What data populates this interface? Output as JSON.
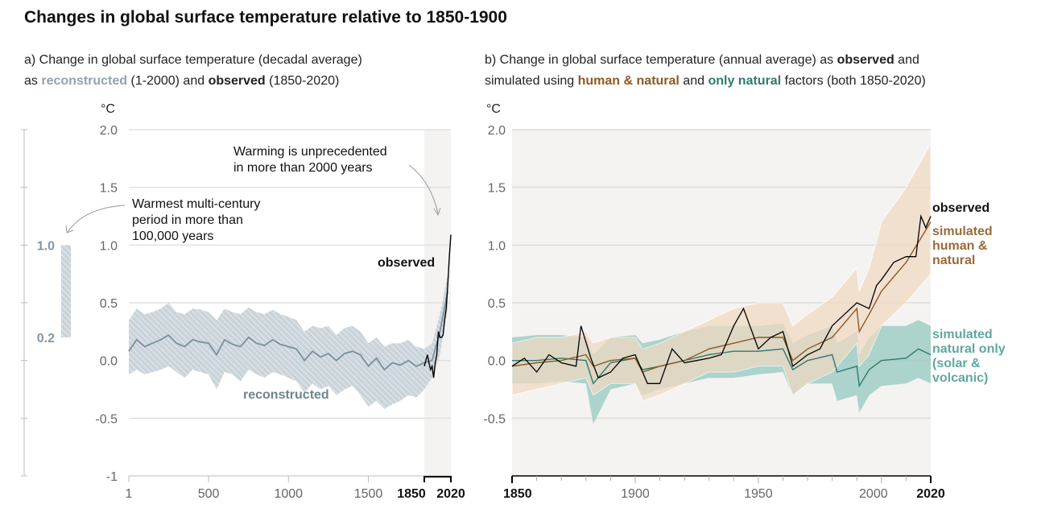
{
  "title": "Changes in global surface temperature relative to 1850-1900",
  "panel_a": {
    "line1": "a) Change in global surface temperature (decadal average)",
    "line2_pre": "as ",
    "line2_recon": "reconstructed",
    "line2_mid": " (1-2000) and ",
    "line2_obs": "observed",
    "line2_post": " (1850-2020)",
    "unit": "°C",
    "annotation_unprecedented": [
      "Warming is unprecedented",
      "in more than 2000 years"
    ],
    "annotation_warmest": [
      "Warmest multi-century",
      "period in more than",
      "100,000 years"
    ],
    "label_observed": "observed",
    "label_reconstructed": "reconstructed",
    "warmest_range": {
      "low": 0.2,
      "high": 1.0,
      "labels": [
        "1.0",
        "0.2"
      ]
    }
  },
  "panel_b": {
    "line1_pre": "b) Change in global surface temperature (annual average) as ",
    "line1_obs": "observed",
    "line1_post": " and",
    "line2_pre": "simulated using ",
    "line2_human": "human & natural",
    "line2_mid": " and ",
    "line2_nat": "only natural",
    "line2_post": " factors (both 1850-2020)",
    "unit": "°C",
    "label_observed": "observed",
    "label_human": [
      "simulated",
      "human &",
      "natural"
    ],
    "label_natural": [
      "simulated",
      "natural only",
      "(solar &",
      "volcanic)"
    ]
  },
  "colors": {
    "reconstructed": "#7a909c",
    "recon_band": "#b7c4cc",
    "observed": "#000000",
    "human": "#8c5a24",
    "human_band": "#f2d9c2",
    "natural": "#2f7a70",
    "natural_band": "#9fcdc6",
    "shade": "#f4f3f1"
  },
  "chart_data": [
    {
      "type": "line",
      "panel": "a",
      "ylim": [
        -1,
        2
      ],
      "yticks": [
        "2.0",
        "1.5",
        "1.0",
        "0.5",
        "0.0",
        "-0.5",
        "-1"
      ],
      "xticks": [
        "1",
        "500",
        "1000",
        "1500",
        "1850",
        "2020"
      ],
      "series": [
        {
          "name": "reconstructed",
          "x": [
            1,
            50,
            100,
            150,
            200,
            250,
            300,
            350,
            400,
            450,
            500,
            550,
            600,
            650,
            700,
            750,
            800,
            850,
            900,
            950,
            1000,
            1050,
            1100,
            1150,
            1200,
            1250,
            1300,
            1350,
            1400,
            1450,
            1500,
            1550,
            1600,
            1650,
            1700,
            1750,
            1800,
            1850,
            1900,
            1950,
            2000
          ],
          "y": [
            0.08,
            0.18,
            0.12,
            0.15,
            0.18,
            0.22,
            0.15,
            0.12,
            0.18,
            0.16,
            0.15,
            0.05,
            0.18,
            0.14,
            0.12,
            0.2,
            0.15,
            0.13,
            0.18,
            0.14,
            0.12,
            0.1,
            0.0,
            0.08,
            0.03,
            0.06,
            0.0,
            0.06,
            0.08,
            0.05,
            -0.05,
            0.02,
            -0.08,
            -0.02,
            -0.04,
            0.0,
            -0.05,
            -0.02,
            0.0,
            0.25,
            0.6
          ],
          "lower": [
            -0.12,
            -0.08,
            -0.12,
            -0.1,
            -0.08,
            -0.05,
            -0.1,
            -0.15,
            -0.08,
            -0.1,
            -0.12,
            -0.25,
            -0.1,
            -0.12,
            -0.18,
            -0.08,
            -0.12,
            -0.15,
            -0.1,
            -0.12,
            -0.15,
            -0.18,
            -0.28,
            -0.2,
            -0.25,
            -0.22,
            -0.3,
            -0.25,
            -0.22,
            -0.3,
            -0.4,
            -0.35,
            -0.42,
            -0.38,
            -0.35,
            -0.3,
            -0.32,
            -0.25,
            -0.15,
            0.05,
            0.45
          ],
          "upper": [
            0.35,
            0.45,
            0.4,
            0.42,
            0.45,
            0.5,
            0.42,
            0.4,
            0.45,
            0.44,
            0.42,
            0.35,
            0.45,
            0.42,
            0.4,
            0.46,
            0.42,
            0.4,
            0.44,
            0.4,
            0.38,
            0.35,
            0.25,
            0.3,
            0.28,
            0.3,
            0.22,
            0.28,
            0.3,
            0.25,
            0.15,
            0.2,
            0.12,
            0.15,
            0.15,
            0.18,
            0.12,
            0.1,
            0.15,
            0.4,
            0.75
          ]
        },
        {
          "name": "observed",
          "x": [
            1850,
            1860,
            1870,
            1880,
            1890,
            1900,
            1910,
            1920,
            1930,
            1940,
            1950,
            1960,
            1970,
            1980,
            1990,
            2000,
            2010,
            2020
          ],
          "y": [
            -0.05,
            0.0,
            0.05,
            -0.02,
            -0.08,
            -0.05,
            -0.15,
            -0.02,
            0.05,
            0.25,
            0.2,
            0.2,
            0.22,
            0.35,
            0.45,
            0.65,
            0.9,
            1.09
          ]
        }
      ]
    },
    {
      "type": "line",
      "panel": "b",
      "ylim": [
        -1,
        2
      ],
      "yticks": [
        "2.0",
        "1.5",
        "1.0",
        "0.5",
        "0.0",
        "-0.5"
      ],
      "xticks": [
        "1850",
        "1900",
        "1950",
        "2000",
        "2020"
      ],
      "series": [
        {
          "name": "observed",
          "x": [
            1850,
            1855,
            1860,
            1865,
            1870,
            1876,
            1878,
            1882,
            1885,
            1890,
            1895,
            1900,
            1905,
            1910,
            1915,
            1920,
            1925,
            1930,
            1935,
            1940,
            1944,
            1950,
            1955,
            1960,
            1964,
            1970,
            1975,
            1980,
            1985,
            1990,
            1995,
            1998,
            2000,
            2005,
            2010,
            2014,
            2016,
            2018,
            2020
          ],
          "y": [
            -0.05,
            0.02,
            -0.1,
            0.05,
            -0.02,
            -0.05,
            0.3,
            0.02,
            -0.15,
            -0.1,
            0.02,
            0.05,
            -0.2,
            -0.2,
            0.1,
            -0.02,
            0.0,
            0.02,
            0.05,
            0.3,
            0.45,
            0.1,
            0.2,
            0.25,
            -0.05,
            0.05,
            0.1,
            0.3,
            0.4,
            0.5,
            0.45,
            0.65,
            0.7,
            0.85,
            0.9,
            0.9,
            1.25,
            1.15,
            1.25
          ]
        },
        {
          "name": "simulated human & natural",
          "x": [
            1850,
            1860,
            1870,
            1880,
            1883,
            1890,
            1900,
            1903,
            1910,
            1920,
            1930,
            1940,
            1950,
            1960,
            1964,
            1970,
            1980,
            1990,
            1991,
            1995,
            2000,
            2010,
            2020
          ],
          "y": [
            -0.05,
            -0.02,
            0.0,
            0.05,
            -0.05,
            0.0,
            0.02,
            -0.1,
            -0.05,
            0.0,
            0.1,
            0.15,
            0.2,
            0.2,
            0.0,
            0.1,
            0.2,
            0.45,
            0.25,
            0.4,
            0.6,
            0.85,
            1.2
          ],
          "lower": [
            -0.3,
            -0.25,
            -0.2,
            -0.15,
            -0.3,
            -0.2,
            -0.2,
            -0.35,
            -0.3,
            -0.2,
            -0.1,
            -0.1,
            -0.05,
            -0.05,
            -0.3,
            -0.2,
            -0.1,
            0.15,
            -0.05,
            0.05,
            0.3,
            0.5,
            0.75
          ],
          "upper": [
            0.15,
            0.2,
            0.2,
            0.25,
            0.15,
            0.2,
            0.2,
            0.1,
            0.15,
            0.25,
            0.35,
            0.45,
            0.5,
            0.5,
            0.3,
            0.4,
            0.55,
            0.8,
            0.6,
            0.8,
            1.2,
            1.5,
            1.88
          ]
        },
        {
          "name": "simulated natural only (solar & volcanic)",
          "x": [
            1850,
            1860,
            1870,
            1880,
            1883,
            1890,
            1900,
            1903,
            1910,
            1920,
            1930,
            1940,
            1950,
            1960,
            1964,
            1970,
            1980,
            1982,
            1990,
            1991,
            1995,
            2000,
            2010,
            2015,
            2020
          ],
          "y": [
            0.0,
            0.0,
            0.02,
            0.0,
            -0.2,
            -0.02,
            0.02,
            -0.08,
            -0.05,
            0.0,
            0.05,
            0.08,
            0.08,
            0.1,
            -0.08,
            0.0,
            0.05,
            -0.1,
            -0.05,
            -0.22,
            -0.08,
            0.0,
            0.02,
            0.1,
            0.05
          ],
          "lower": [
            -0.2,
            -0.2,
            -0.18,
            -0.2,
            -0.55,
            -0.25,
            -0.2,
            -0.3,
            -0.25,
            -0.2,
            -0.15,
            -0.15,
            -0.12,
            -0.1,
            -0.3,
            -0.2,
            -0.2,
            -0.35,
            -0.3,
            -0.45,
            -0.3,
            -0.22,
            -0.2,
            -0.15,
            -0.2
          ],
          "upper": [
            0.2,
            0.22,
            0.22,
            0.2,
            0.05,
            0.2,
            0.22,
            0.15,
            0.18,
            0.25,
            0.3,
            0.3,
            0.3,
            0.32,
            0.15,
            0.22,
            0.3,
            0.15,
            0.25,
            0.05,
            0.2,
            0.3,
            0.3,
            0.35,
            0.3
          ]
        }
      ]
    }
  ]
}
